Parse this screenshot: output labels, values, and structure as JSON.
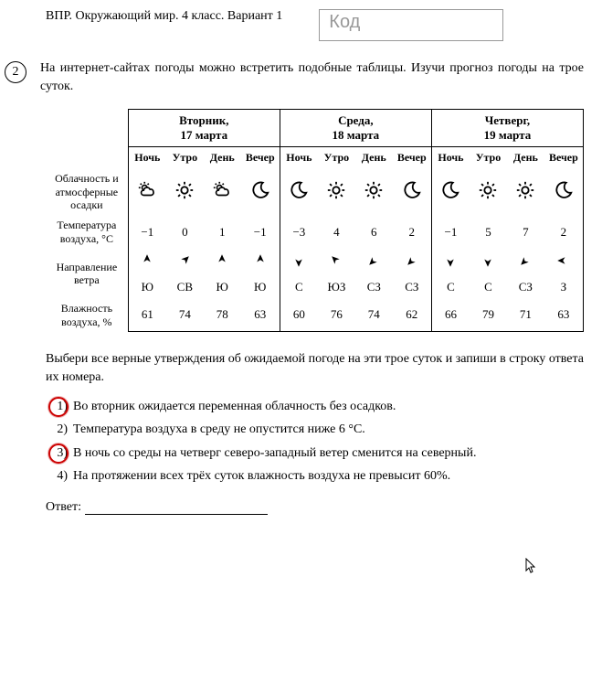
{
  "header": {
    "title": "ВПР. Окружающий мир. 4 класс. Вариант 1",
    "code_placeholder": "Код"
  },
  "task": {
    "number": "2",
    "text": "На интернет-сайтах погоды можно встретить подобные таблицы. Изучи прогноз погоды на трое суток."
  },
  "table": {
    "days": [
      {
        "name": "Вторник,",
        "date": "17 марта"
      },
      {
        "name": "Среда,",
        "date": "18 марта"
      },
      {
        "name": "Четверг,",
        "date": "19 марта"
      }
    ],
    "subcols": [
      "Ночь",
      "Утро",
      "День",
      "Вечер"
    ],
    "row_labels": {
      "clouds": "Облачность и атмосферные осадки",
      "temp": "Температура воздуха, °C",
      "wind": "Направление ветра",
      "humidity": "Влажность воздуха, %"
    },
    "icons": [
      "partly",
      "sun",
      "partly",
      "moon",
      "moon",
      "sun",
      "sun",
      "moon",
      "moon",
      "sun",
      "sun",
      "moon"
    ],
    "temps": [
      "−1",
      "0",
      "1",
      "−1",
      "−3",
      "4",
      "6",
      "2",
      "−1",
      "5",
      "7",
      "2"
    ],
    "wind_dirs_deg": [
      0,
      45,
      0,
      0,
      180,
      315,
      225,
      225,
      180,
      180,
      225,
      270
    ],
    "wind_labels": [
      "Ю",
      "СВ",
      "Ю",
      "Ю",
      "С",
      "ЮЗ",
      "СЗ",
      "СЗ",
      "С",
      "С",
      "СЗ",
      "З"
    ],
    "humidity": [
      "61",
      "74",
      "78",
      "63",
      "60",
      "76",
      "74",
      "62",
      "66",
      "79",
      "71",
      "63"
    ]
  },
  "instruction": "Выбери все верные утверждения об ожидаемой погоде на эти трое суток и запиши в строку ответа их номера.",
  "options": [
    {
      "n": "1)",
      "text": "Во вторник ожидается переменная облачность без осадков.",
      "highlight": true
    },
    {
      "n": "2)",
      "text": "Температура воздуха в среду не опустится ниже 6 °C.",
      "highlight": false
    },
    {
      "n": "3)",
      "text": "В ночь со среды на четверг северо-западный ветер сменится на северный.",
      "highlight": true
    },
    {
      "n": "4)",
      "text": "На протяжении всех трёх суток влажность воздуха не превысит 60%.",
      "highlight": false
    }
  ],
  "answer_label": "Ответ:"
}
